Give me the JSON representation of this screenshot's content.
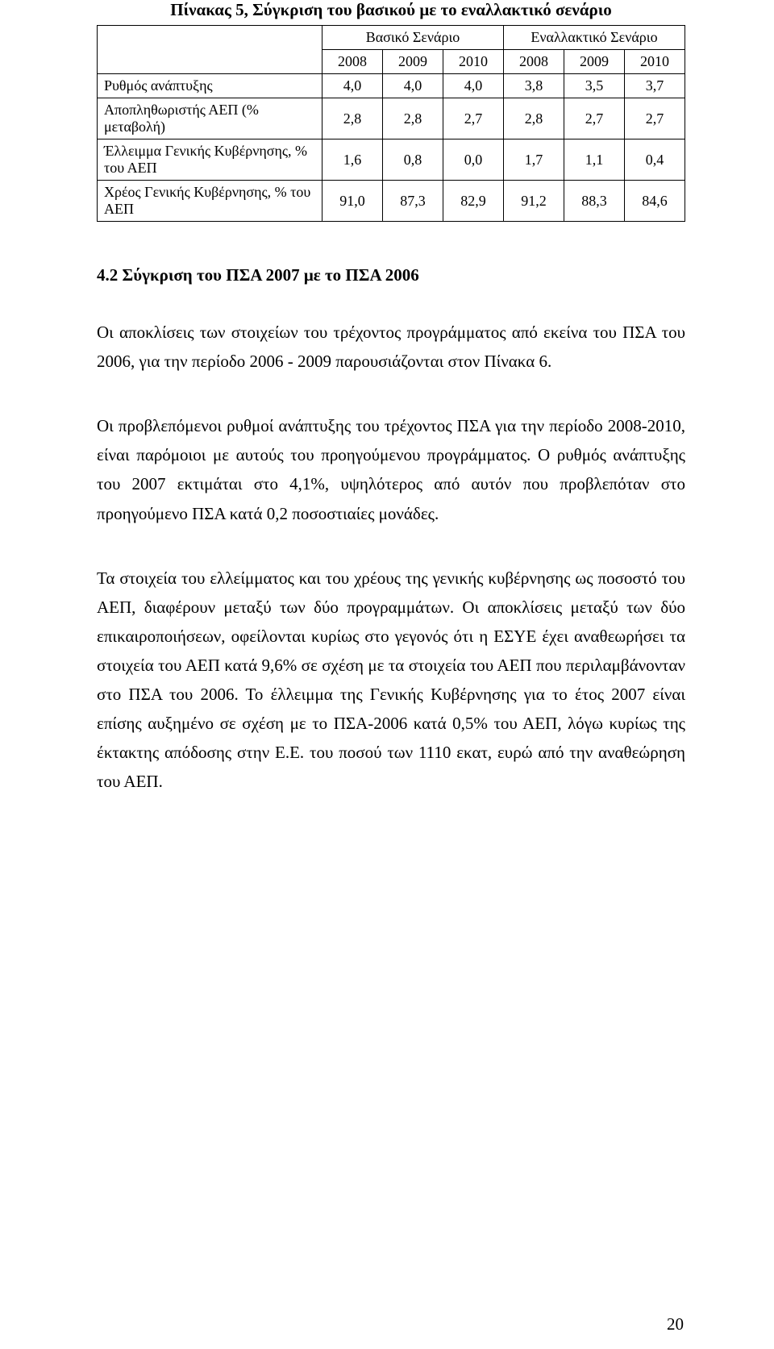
{
  "table": {
    "title": "Πίνακας 5,  Σύγκριση του βασικού με το εναλλακτικό σενάριο",
    "group_headers": [
      "Βασικό Σενάριο",
      "Εναλλακτικό Σενάριο"
    ],
    "years": [
      "2008",
      "2009",
      "2010",
      "2008",
      "2009",
      "2010"
    ],
    "rows": [
      {
        "label": "Ρυθμός ανάπτυξης",
        "values": [
          "4,0",
          "4,0",
          "4,0",
          "3,8",
          "3,5",
          "3,7"
        ]
      },
      {
        "label": "Αποπληθωριστής ΑΕΠ (% μεταβολή)",
        "values": [
          "2,8",
          "2,8",
          "2,7",
          "2,8",
          "2,7",
          "2,7"
        ]
      },
      {
        "label": "Έλλειμμα Γενικής Κυβέρνησης, % του ΑΕΠ",
        "values": [
          "1,6",
          "0,8",
          "0,0",
          "1,7",
          "1,1",
          "0,4"
        ]
      },
      {
        "label": "Χρέος Γενικής Κυβέρνησης, % του ΑΕΠ",
        "values": [
          "91,0",
          "87,3",
          "82,9",
          "91,2",
          "88,3",
          "84,6"
        ]
      }
    ]
  },
  "section_heading": "4.2 Σύγκριση του ΠΣΑ 2007 με το ΠΣΑ 2006",
  "paragraphs": {
    "p1": "Οι αποκλίσεις των στοιχείων του τρέχοντος προγράμματος από εκείνα του ΠΣΑ του 2006, για την περίοδο 2006 - 2009 παρουσιάζονται στον Πίνακα 6.",
    "p2": "Οι προβλεπόμενοι ρυθμοί ανάπτυξης του τρέχοντος ΠΣΑ για την περίοδο 2008-2010, είναι παρόμοιοι με αυτούς του προηγούμενου προγράμματος. Ο ρυθμός ανάπτυξης του 2007 εκτιμάται στο 4,1%, υψηλότερος από αυτόν που προβλεπόταν στο προηγούμενο ΠΣΑ κατά 0,2 ποσοστιαίες μονάδες.",
    "p3": "Τα στοιχεία του ελλείμματος και του χρέους της γενικής κυβέρνησης ως ποσοστό του ΑΕΠ, διαφέρουν μεταξύ των δύο προγραμμάτων. Οι αποκλίσεις μεταξύ των δύο επικαιροποιήσεων, οφείλονται κυρίως στο γεγονός ότι η ΕΣΥΕ έχει αναθεωρήσει τα στοιχεία του ΑΕΠ κατά 9,6% σε σχέση με τα στοιχεία του ΑΕΠ που περιλαμβάνονταν στο ΠΣΑ του 2006. Το έλλειμμα της Γενικής Κυβέρνησης για το έτος 2007 είναι επίσης αυξημένο σε σχέση με το ΠΣΑ-2006 κατά 0,5% του ΑΕΠ, λόγω κυρίως της έκτακτης απόδοσης στην Ε.Ε. του ποσού των 1110 εκατ, ευρώ από την αναθεώρηση του ΑΕΠ."
  },
  "page_number": "20"
}
